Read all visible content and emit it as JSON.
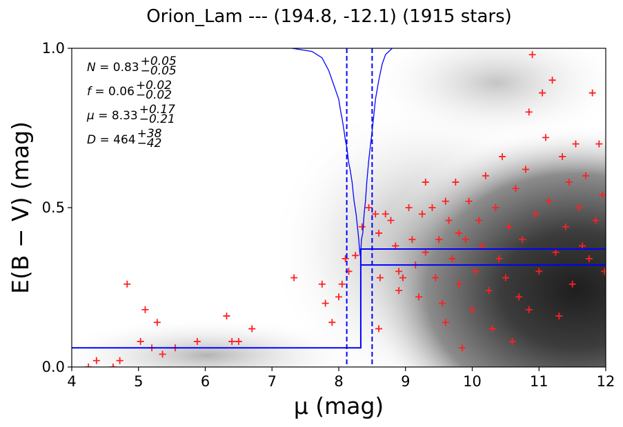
{
  "chart_data": {
    "type": "scatter",
    "title": "Orion_Lam --- (194.8, -12.1) (1915 stars)",
    "xlabel": "μ (mag)",
    "ylabel": "E(B − V) (mag)",
    "xlim": [
      4,
      12
    ],
    "ylim": [
      0.0,
      1.0
    ],
    "x_ticks": [
      4,
      5,
      6,
      7,
      8,
      9,
      10,
      11,
      12
    ],
    "x_tick_labels": [
      "4",
      "5",
      "6",
      "7",
      "8",
      "9",
      "10",
      "11",
      "12"
    ],
    "y_ticks": [
      0.0,
      0.5,
      1.0
    ],
    "y_tick_labels": [
      "0.0",
      "0.5",
      "1.0"
    ],
    "grid": false,
    "background": "grayscale density map of stars, darker toward large μ (bottom-right)",
    "colors": {
      "stars": "#ff2020",
      "model": "#0000ff",
      "frame": "#000000"
    },
    "annotations": [
      {
        "symbol": "N",
        "value": "0.83",
        "plus": "+0.05",
        "minus": "−0.05"
      },
      {
        "symbol": "f",
        "value": "0.06",
        "plus": "+0.02",
        "minus": "−0.02"
      },
      {
        "symbol": "μ",
        "value": "8.33",
        "plus": "+0.17",
        "minus": "−0.21"
      },
      {
        "symbol": "D",
        "value": "464",
        "plus": "+38",
        "minus": "−42"
      }
    ],
    "model_step": {
      "name": "",
      "mu_break": 8.33,
      "foreground_ebv": 0.06,
      "background_ebv_lower": 0.32,
      "background_ebv_upper": 0.37,
      "mu_lower": 8.12,
      "mu_upper": 8.5
    },
    "likelihood_curve": [
      [
        7.3,
        1.0
      ],
      [
        7.6,
        0.99
      ],
      [
        7.75,
        0.97
      ],
      [
        7.85,
        0.93
      ],
      [
        7.9,
        0.9
      ],
      [
        7.95,
        0.87
      ],
      [
        8.0,
        0.84
      ],
      [
        8.03,
        0.8
      ],
      [
        8.05,
        0.78
      ],
      [
        8.08,
        0.74
      ],
      [
        8.1,
        0.71
      ],
      [
        8.12,
        0.69
      ],
      [
        8.15,
        0.64
      ],
      [
        8.17,
        0.62
      ],
      [
        8.2,
        0.58
      ],
      [
        8.23,
        0.52
      ],
      [
        8.26,
        0.48
      ],
      [
        8.28,
        0.44
      ],
      [
        8.3,
        0.4
      ],
      [
        8.31,
        0.37
      ],
      [
        8.32,
        0.35
      ],
      [
        8.33,
        0.36
      ],
      [
        8.34,
        0.4
      ],
      [
        8.36,
        0.42
      ],
      [
        8.38,
        0.48
      ],
      [
        8.4,
        0.52
      ],
      [
        8.42,
        0.58
      ],
      [
        8.45,
        0.65
      ],
      [
        8.5,
        0.74
      ],
      [
        8.55,
        0.84
      ],
      [
        8.6,
        0.9
      ],
      [
        8.65,
        0.95
      ],
      [
        8.7,
        0.98
      ],
      [
        8.8,
        1.0
      ]
    ],
    "stars": [
      [
        4.25,
        0.0
      ],
      [
        4.37,
        0.02
      ],
      [
        4.62,
        0.0
      ],
      [
        4.72,
        0.02
      ],
      [
        4.83,
        0.26
      ],
      [
        5.03,
        0.08
      ],
      [
        5.1,
        0.18
      ],
      [
        5.2,
        0.06
      ],
      [
        5.28,
        0.14
      ],
      [
        5.36,
        0.04
      ],
      [
        5.55,
        0.06
      ],
      [
        5.88,
        0.08
      ],
      [
        6.32,
        0.16
      ],
      [
        6.4,
        0.08
      ],
      [
        6.5,
        0.08
      ],
      [
        6.7,
        0.12
      ],
      [
        7.33,
        0.28
      ],
      [
        7.75,
        0.26
      ],
      [
        7.8,
        0.2
      ],
      [
        7.9,
        0.14
      ],
      [
        8.0,
        0.22
      ],
      [
        8.05,
        0.26
      ],
      [
        8.1,
        0.34
      ],
      [
        8.15,
        0.3
      ],
      [
        8.25,
        0.35
      ],
      [
        8.35,
        0.44
      ],
      [
        8.45,
        0.5
      ],
      [
        8.55,
        0.48
      ],
      [
        8.6,
        0.42
      ],
      [
        8.62,
        0.28
      ],
      [
        8.7,
        0.48
      ],
      [
        8.78,
        0.46
      ],
      [
        8.85,
        0.38
      ],
      [
        8.9,
        0.3
      ],
      [
        8.96,
        0.28
      ],
      [
        9.05,
        0.5
      ],
      [
        9.1,
        0.4
      ],
      [
        9.15,
        0.32
      ],
      [
        9.2,
        0.22
      ],
      [
        9.25,
        0.48
      ],
      [
        9.3,
        0.36
      ],
      [
        9.4,
        0.5
      ],
      [
        9.45,
        0.28
      ],
      [
        9.5,
        0.4
      ],
      [
        9.55,
        0.2
      ],
      [
        9.6,
        0.14
      ],
      [
        9.65,
        0.46
      ],
      [
        9.7,
        0.34
      ],
      [
        9.75,
        0.58
      ],
      [
        9.8,
        0.26
      ],
      [
        9.85,
        0.06
      ],
      [
        9.9,
        0.4
      ],
      [
        9.95,
        0.52
      ],
      [
        10.0,
        0.18
      ],
      [
        10.05,
        0.3
      ],
      [
        10.1,
        0.46
      ],
      [
        10.15,
        0.38
      ],
      [
        10.2,
        0.6
      ],
      [
        10.25,
        0.24
      ],
      [
        10.3,
        0.12
      ],
      [
        10.35,
        0.5
      ],
      [
        10.4,
        0.34
      ],
      [
        10.45,
        0.66
      ],
      [
        10.5,
        0.28
      ],
      [
        10.55,
        0.44
      ],
      [
        10.6,
        0.08
      ],
      [
        10.65,
        0.56
      ],
      [
        10.7,
        0.22
      ],
      [
        10.75,
        0.4
      ],
      [
        10.8,
        0.62
      ],
      [
        10.85,
        0.18
      ],
      [
        10.9,
        0.98
      ],
      [
        10.95,
        0.48
      ],
      [
        11.0,
        0.3
      ],
      [
        11.05,
        0.86
      ],
      [
        11.1,
        0.72
      ],
      [
        11.15,
        0.52
      ],
      [
        11.2,
        0.9
      ],
      [
        11.25,
        0.36
      ],
      [
        11.3,
        0.16
      ],
      [
        11.35,
        0.66
      ],
      [
        11.4,
        0.44
      ],
      [
        11.45,
        0.58
      ],
      [
        11.5,
        0.26
      ],
      [
        11.55,
        0.7
      ],
      [
        11.6,
        0.5
      ],
      [
        11.65,
        0.38
      ],
      [
        11.7,
        0.6
      ],
      [
        11.75,
        0.34
      ],
      [
        11.8,
        0.86
      ],
      [
        11.85,
        0.46
      ],
      [
        11.9,
        0.7
      ],
      [
        11.95,
        0.54
      ],
      [
        11.98,
        0.3
      ],
      [
        10.85,
        0.8
      ],
      [
        9.3,
        0.58
      ],
      [
        9.6,
        0.52
      ],
      [
        8.9,
        0.24
      ],
      [
        8.6,
        0.12
      ],
      [
        9.8,
        0.42
      ]
    ]
  }
}
